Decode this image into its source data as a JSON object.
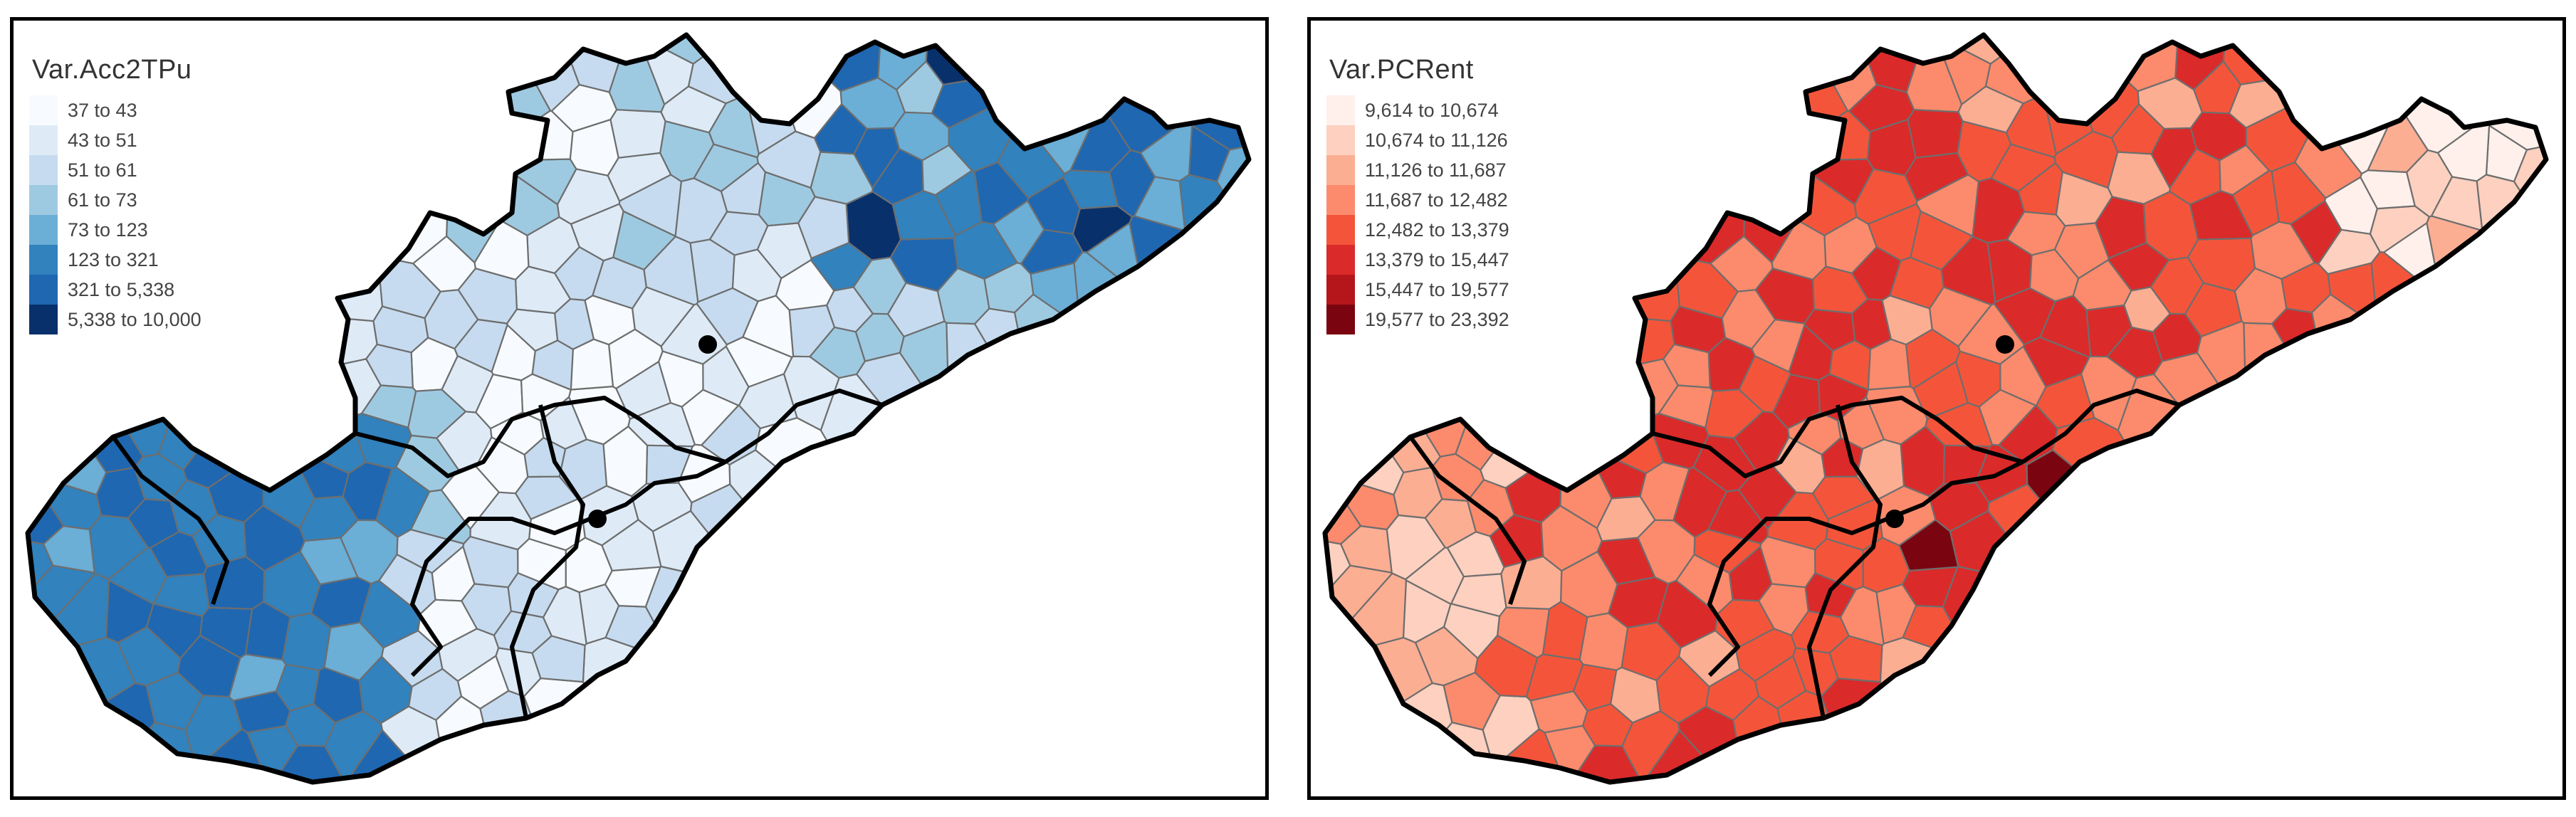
{
  "maps": [
    {
      "id": "left",
      "legend_title": "Var.Acc2TPu",
      "classes": [
        {
          "label": "37 to 43",
          "color": "#f7fbff"
        },
        {
          "label": "43 to 51",
          "color": "#deebf7"
        },
        {
          "label": "51 to 61",
          "color": "#c6dbef"
        },
        {
          "label": "61 to 73",
          "color": "#9ecae1"
        },
        {
          "label": "73 to 123",
          "color": "#6baed6"
        },
        {
          "label": "123 to 321",
          "color": "#3182bd"
        },
        {
          "label": "321 to 5,338",
          "color": "#1f67b0"
        },
        {
          "label": "5,338 to 10,000",
          "color": "#08306b"
        }
      ]
    },
    {
      "id": "right",
      "legend_title": "Var.PCRent",
      "classes": [
        {
          "label": "9,614 to 10,674",
          "color": "#fff0eb"
        },
        {
          "label": "10,674 to 11,126",
          "color": "#fdd0bf"
        },
        {
          "label": "11,126 to 11,687",
          "color": "#fcae93"
        },
        {
          "label": "11,687 to 12,482",
          "color": "#fb8b6c"
        },
        {
          "label": "12,482 to 13,379",
          "color": "#f4553a"
        },
        {
          "label": "13,379 to 15,447",
          "color": "#db2a2a"
        },
        {
          "label": "15,447 to 19,577",
          "color": "#b5161c"
        },
        {
          "label": "19,577 to 23,392",
          "color": "#7a0510"
        }
      ]
    }
  ]
}
